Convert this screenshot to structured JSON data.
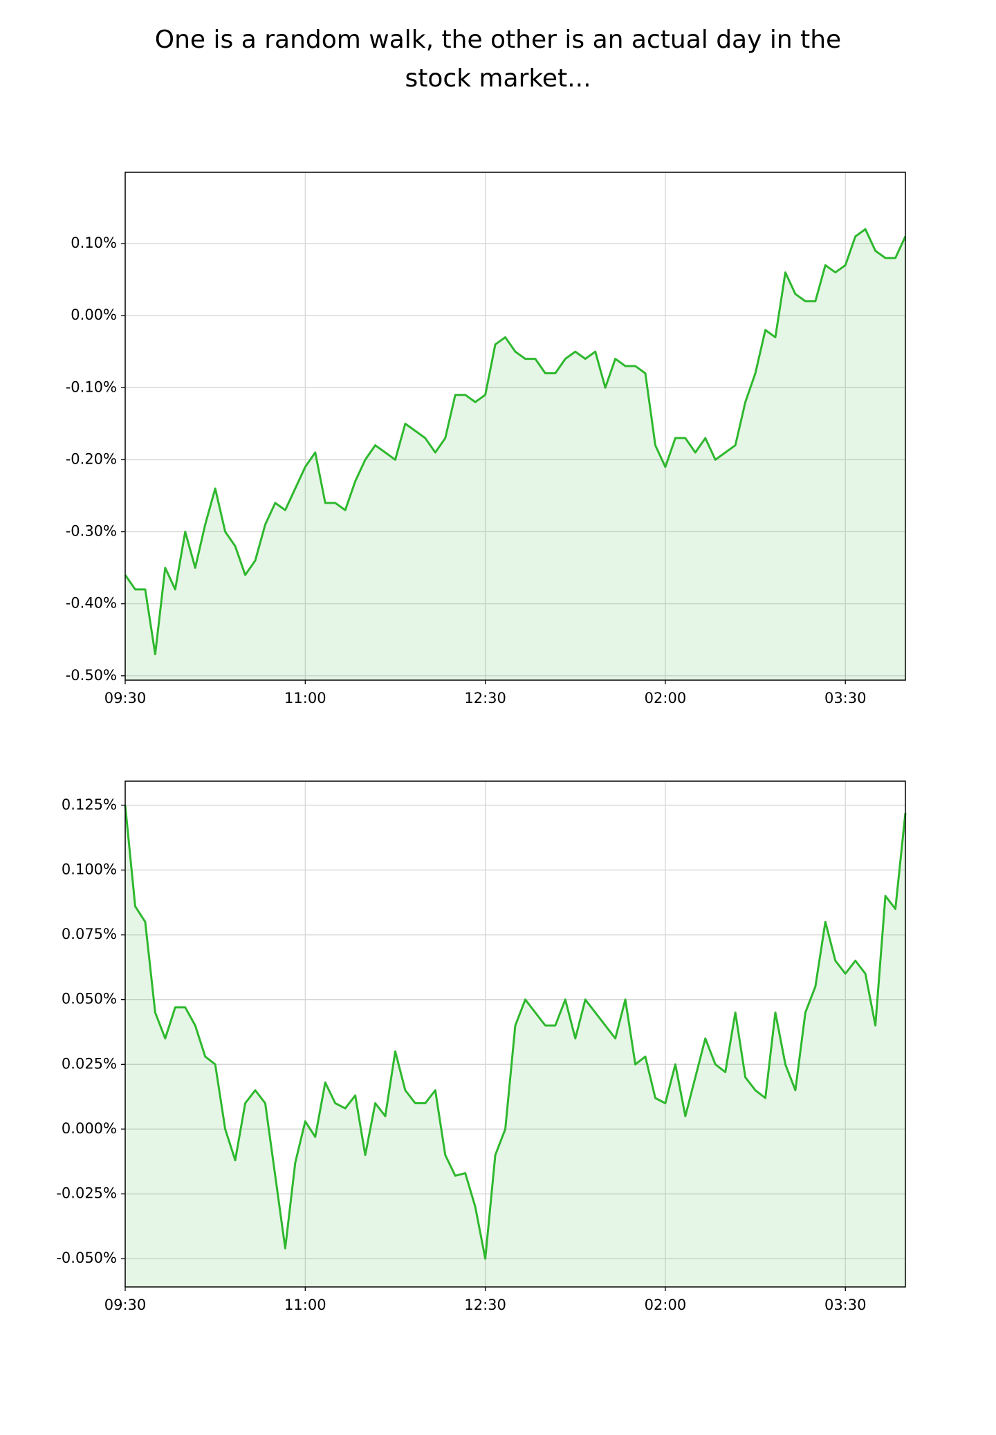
{
  "title": "One is a random walk, the other is an actual day in the stock market...",
  "chart_data": [
    {
      "type": "line",
      "color": "#2eb82e",
      "fill": true,
      "grid": true,
      "xlim": [
        0,
        390
      ],
      "xticks": [
        {
          "value": 0,
          "label": "09:30"
        },
        {
          "value": 90,
          "label": "11:00"
        },
        {
          "value": 180,
          "label": "12:30"
        },
        {
          "value": 270,
          "label": "02:00"
        },
        {
          "value": 360,
          "label": "03:30"
        }
      ],
      "ylim": [
        -0.506,
        0.199
      ],
      "yticks": [
        {
          "value": -0.5,
          "label": "-0.50%"
        },
        {
          "value": -0.4,
          "label": "-0.40%"
        },
        {
          "value": -0.3,
          "label": "-0.30%"
        },
        {
          "value": -0.2,
          "label": "-0.20%"
        },
        {
          "value": -0.1,
          "label": "-0.10%"
        },
        {
          "value": 0,
          "label": "0.00%"
        },
        {
          "value": 0.1,
          "label": "0.10%"
        }
      ],
      "x": [
        0,
        5,
        10,
        15,
        20,
        25,
        30,
        35,
        40,
        45,
        50,
        55,
        60,
        65,
        70,
        75,
        80,
        85,
        90,
        95,
        100,
        105,
        110,
        115,
        120,
        125,
        130,
        135,
        140,
        145,
        150,
        155,
        160,
        165,
        170,
        175,
        180,
        185,
        190,
        195,
        200,
        205,
        210,
        215,
        220,
        225,
        230,
        235,
        240,
        245,
        250,
        255,
        260,
        265,
        270,
        275,
        280,
        285,
        290,
        295,
        300,
        305,
        310,
        315,
        320,
        325,
        330,
        335,
        340,
        345,
        350,
        355,
        360,
        365,
        370,
        375,
        380,
        385,
        390
      ],
      "values": [
        -0.36,
        -0.38,
        -0.38,
        -0.47,
        -0.35,
        -0.38,
        -0.3,
        -0.35,
        -0.29,
        -0.24,
        -0.3,
        -0.32,
        -0.36,
        -0.34,
        -0.29,
        -0.26,
        -0.27,
        -0.24,
        -0.21,
        -0.19,
        -0.26,
        -0.26,
        -0.27,
        -0.23,
        -0.2,
        -0.18,
        -0.19,
        -0.2,
        -0.15,
        -0.16,
        -0.17,
        -0.19,
        -0.17,
        -0.11,
        -0.11,
        -0.12,
        -0.11,
        -0.04,
        -0.03,
        -0.05,
        -0.06,
        -0.06,
        -0.08,
        -0.08,
        -0.06,
        -0.05,
        -0.06,
        -0.05,
        -0.1,
        -0.06,
        -0.07,
        -0.07,
        -0.08,
        -0.18,
        -0.21,
        -0.17,
        -0.17,
        -0.19,
        -0.17,
        -0.2,
        -0.19,
        -0.18,
        -0.12,
        -0.08,
        -0.02,
        -0.03,
        0.06,
        0.03,
        0.02,
        0.02,
        0.07,
        0.06,
        0.07,
        0.11,
        0.12,
        0.09,
        0.08,
        0.08,
        0.11
      ]
    },
    {
      "type": "line",
      "color": "#2eb82e",
      "fill": true,
      "grid": true,
      "xlim": [
        0,
        390
      ],
      "xticks": [
        {
          "value": 0,
          "label": "09:30"
        },
        {
          "value": 90,
          "label": "11:00"
        },
        {
          "value": 180,
          "label": "12:30"
        },
        {
          "value": 270,
          "label": "02:00"
        },
        {
          "value": 360,
          "label": "03:30"
        }
      ],
      "ylim": [
        -0.0609,
        0.1343
      ],
      "yticks": [
        {
          "value": -0.05,
          "label": "-0.050%"
        },
        {
          "value": -0.025,
          "label": "-0.025%"
        },
        {
          "value": 0,
          "label": "0.000%"
        },
        {
          "value": 0.025,
          "label": "0.025%"
        },
        {
          "value": 0.05,
          "label": "0.050%"
        },
        {
          "value": 0.075,
          "label": "0.075%"
        },
        {
          "value": 0.1,
          "label": "0.100%"
        },
        {
          "value": 0.125,
          "label": "0.125%"
        }
      ],
      "x": [
        0,
        5,
        10,
        15,
        20,
        25,
        30,
        35,
        40,
        45,
        50,
        55,
        60,
        65,
        70,
        75,
        80,
        85,
        90,
        95,
        100,
        105,
        110,
        115,
        120,
        125,
        130,
        135,
        140,
        145,
        150,
        155,
        160,
        165,
        170,
        175,
        180,
        185,
        190,
        195,
        200,
        205,
        210,
        215,
        220,
        225,
        230,
        235,
        240,
        245,
        250,
        255,
        260,
        265,
        270,
        275,
        280,
        285,
        290,
        295,
        300,
        305,
        310,
        315,
        320,
        325,
        330,
        335,
        340,
        345,
        350,
        355,
        360,
        365,
        370,
        375,
        380,
        385,
        390
      ],
      "values": [
        0.125,
        0.086,
        0.08,
        0.045,
        0.035,
        0.047,
        0.047,
        0.04,
        0.028,
        0.025,
        0.0,
        -0.012,
        0.01,
        0.015,
        0.01,
        -0.018,
        -0.046,
        -0.013,
        0.003,
        -0.003,
        0.018,
        0.01,
        0.008,
        0.013,
        -0.01,
        0.01,
        0.005,
        0.03,
        0.015,
        0.01,
        0.01,
        0.015,
        -0.01,
        -0.018,
        -0.017,
        -0.03,
        -0.05,
        -0.01,
        0.0,
        0.04,
        0.05,
        0.045,
        0.04,
        0.04,
        0.05,
        0.035,
        0.05,
        0.045,
        0.04,
        0.035,
        0.05,
        0.025,
        0.028,
        0.012,
        0.01,
        0.025,
        0.005,
        0.02,
        0.035,
        0.025,
        0.022,
        0.045,
        0.02,
        0.015,
        0.012,
        0.045,
        0.025,
        0.015,
        0.045,
        0.055,
        0.08,
        0.065,
        0.06,
        0.065,
        0.06,
        0.04,
        0.09,
        0.085,
        0.122
      ]
    }
  ]
}
